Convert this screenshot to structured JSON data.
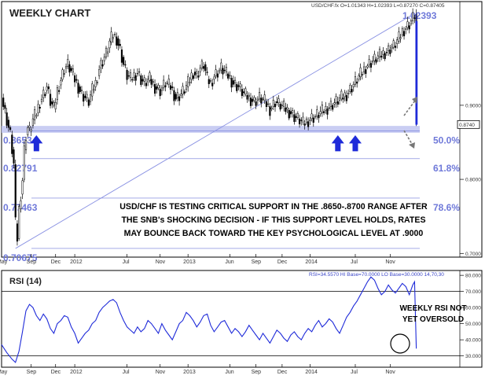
{
  "chart_data": [
    {
      "type": "candlestick",
      "title": "WEEKLY CHART",
      "header": "USD/CHF.fx O=1.01343 H=1.02393 L=0.87270 C=0.87405",
      "price_label": "0.8740",
      "y_tick_labels": [
        "0.9000",
        "0.8000",
        "0.7000"
      ],
      "ylim": [
        0.695,
        1.04
      ],
      "x_tick_labels": [
        "May",
        "Sep",
        "Dec",
        "2012",
        "Jul",
        "Nov",
        "2013",
        "Jun",
        "Sep",
        "Dec",
        "2014",
        "Jul",
        "Nov"
      ],
      "x_tick_weeks": [
        0,
        17,
        31,
        42,
        72,
        91,
        107,
        131,
        146,
        161,
        177,
        203,
        223
      ],
      "fib_levels": [
        {
          "value": 0.70675,
          "left": "0.70675"
        },
        {
          "value": 0.77463,
          "left": "0.77463",
          "right": "78.6%"
        },
        {
          "value": 0.82791,
          "left": "0.82791",
          "right": "61.8%"
        },
        {
          "value": 0.86534,
          "left": "0.86534",
          "right": "50.0%"
        },
        {
          "value": 1.02393,
          "right": "1.02393"
        }
      ],
      "support_band": [
        0.865,
        0.87
      ],
      "trendline": {
        "from_week": 8,
        "from_value": 0.70675,
        "to_week": 237,
        "to_value": 1.02393
      },
      "arrows_up_at_weeks": [
        20,
        193,
        203
      ],
      "annotation": [
        "USD/CHF IS TESTING CRITICAL SUPPORT IN THE .8650-.8700 RANGE AFTER",
        "THE SNB's SHOCKING DECISION - IF THIS SUPPORT LEVEL HOLDS, RATES",
        "MAY BOUNCE BACK TOWARD THE KEY PSYCHOLOGICAL LEVEL AT .9000"
      ],
      "weekly_closes": [
        {
          "week": 0,
          "value": 0.91
        },
        {
          "week": 2,
          "value": 0.89
        },
        {
          "week": 4,
          "value": 0.87
        },
        {
          "week": 5,
          "value": 0.86
        },
        {
          "week": 7,
          "value": 0.82
        },
        {
          "week": 8,
          "value": 0.74
        },
        {
          "week": 9,
          "value": 0.72
        },
        {
          "week": 10,
          "value": 0.76
        },
        {
          "week": 11,
          "value": 0.78
        },
        {
          "week": 12,
          "value": 0.8
        },
        {
          "week": 13,
          "value": 0.84
        },
        {
          "week": 14,
          "value": 0.86
        },
        {
          "week": 15,
          "value": 0.87
        },
        {
          "week": 16,
          "value": 0.865
        },
        {
          "week": 18,
          "value": 0.88
        },
        {
          "week": 20,
          "value": 0.89
        },
        {
          "week": 22,
          "value": 0.905
        },
        {
          "week": 24,
          "value": 0.915
        },
        {
          "week": 26,
          "value": 0.925
        },
        {
          "week": 28,
          "value": 0.905
        },
        {
          "week": 30,
          "value": 0.895
        },
        {
          "week": 32,
          "value": 0.92
        },
        {
          "week": 34,
          "value": 0.935
        },
        {
          "week": 36,
          "value": 0.95
        },
        {
          "week": 38,
          "value": 0.955
        },
        {
          "week": 40,
          "value": 0.945
        },
        {
          "week": 43,
          "value": 0.93
        },
        {
          "week": 46,
          "value": 0.915
        },
        {
          "week": 48,
          "value": 0.91
        },
        {
          "week": 50,
          "value": 0.905
        },
        {
          "week": 52,
          "value": 0.92
        },
        {
          "week": 54,
          "value": 0.93
        },
        {
          "week": 56,
          "value": 0.95
        },
        {
          "week": 58,
          "value": 0.96
        },
        {
          "week": 60,
          "value": 0.97
        },
        {
          "week": 62,
          "value": 0.985
        },
        {
          "week": 64,
          "value": 0.995
        },
        {
          "week": 66,
          "value": 0.99
        },
        {
          "week": 68,
          "value": 0.975
        },
        {
          "week": 70,
          "value": 0.955
        },
        {
          "week": 72,
          "value": 0.94
        },
        {
          "week": 74,
          "value": 0.935
        },
        {
          "week": 76,
          "value": 0.94
        },
        {
          "week": 78,
          "value": 0.945
        },
        {
          "week": 80,
          "value": 0.935
        },
        {
          "week": 82,
          "value": 0.93
        },
        {
          "week": 85,
          "value": 0.935
        },
        {
          "week": 88,
          "value": 0.925
        },
        {
          "week": 91,
          "value": 0.92
        },
        {
          "week": 94,
          "value": 0.93
        },
        {
          "week": 97,
          "value": 0.925
        },
        {
          "week": 100,
          "value": 0.91
        },
        {
          "week": 103,
          "value": 0.915
        },
        {
          "week": 106,
          "value": 0.925
        },
        {
          "week": 108,
          "value": 0.935
        },
        {
          "week": 110,
          "value": 0.945
        },
        {
          "week": 112,
          "value": 0.94
        },
        {
          "week": 114,
          "value": 0.95
        },
        {
          "week": 116,
          "value": 0.955
        },
        {
          "week": 118,
          "value": 0.935
        },
        {
          "week": 120,
          "value": 0.93
        },
        {
          "week": 122,
          "value": 0.94
        },
        {
          "week": 124,
          "value": 0.945
        },
        {
          "week": 126,
          "value": 0.95
        },
        {
          "week": 128,
          "value": 0.945
        },
        {
          "week": 130,
          "value": 0.94
        },
        {
          "week": 133,
          "value": 0.93
        },
        {
          "week": 136,
          "value": 0.925
        },
        {
          "week": 139,
          "value": 0.915
        },
        {
          "week": 142,
          "value": 0.91
        },
        {
          "week": 145,
          "value": 0.905
        },
        {
          "week": 148,
          "value": 0.91
        },
        {
          "week": 151,
          "value": 0.905
        },
        {
          "week": 154,
          "value": 0.895
        },
        {
          "week": 157,
          "value": 0.905
        },
        {
          "week": 160,
          "value": 0.9
        },
        {
          "week": 163,
          "value": 0.895
        },
        {
          "week": 166,
          "value": 0.89
        },
        {
          "week": 168,
          "value": 0.885
        },
        {
          "week": 171,
          "value": 0.88
        },
        {
          "week": 173,
          "value": 0.875
        },
        {
          "week": 175,
          "value": 0.878
        },
        {
          "week": 177,
          "value": 0.882
        },
        {
          "week": 180,
          "value": 0.885
        },
        {
          "week": 183,
          "value": 0.89
        },
        {
          "week": 186,
          "value": 0.895
        },
        {
          "week": 189,
          "value": 0.9
        },
        {
          "week": 192,
          "value": 0.905
        },
        {
          "week": 195,
          "value": 0.91
        },
        {
          "week": 198,
          "value": 0.915
        },
        {
          "week": 201,
          "value": 0.925
        },
        {
          "week": 204,
          "value": 0.935
        },
        {
          "week": 207,
          "value": 0.945
        },
        {
          "week": 210,
          "value": 0.955
        },
        {
          "week": 213,
          "value": 0.96
        },
        {
          "week": 216,
          "value": 0.965
        },
        {
          "week": 219,
          "value": 0.97
        },
        {
          "week": 222,
          "value": 0.975
        },
        {
          "week": 225,
          "value": 0.98
        },
        {
          "week": 228,
          "value": 0.99
        },
        {
          "week": 230,
          "value": 1.0
        },
        {
          "week": 232,
          "value": 1.005
        },
        {
          "week": 234,
          "value": 1.01
        },
        {
          "week": 236,
          "value": 1.018
        },
        {
          "week": 237,
          "value": 1.023
        },
        {
          "week": 238,
          "value": 0.87405
        }
      ]
    },
    {
      "type": "line",
      "title": "RSI (14)",
      "header": "RSI=34.5570 HI Base=70.0000 LO Base=30.0000  14,70,30",
      "y_tick_labels": [
        "80.000",
        "70.000",
        "60.000",
        "50.000",
        "40.000",
        "30.000"
      ],
      "ylim": [
        23,
        83
      ],
      "reference_lines": [
        70,
        30
      ],
      "annotation": [
        "WEEKLY RSI NOT",
        "YET OVERSOLD"
      ],
      "x_tick_labels": [
        "May",
        "Sep",
        "Dec",
        "2012",
        "Jul",
        "Nov",
        "2013",
        "Jun",
        "Sep",
        "Dec",
        "2014",
        "Jul",
        "Nov"
      ],
      "values": [
        {
          "week": 0,
          "value": 37
        },
        {
          "week": 3,
          "value": 32
        },
        {
          "week": 6,
          "value": 28
        },
        {
          "week": 8,
          "value": 26
        },
        {
          "week": 10,
          "value": 33
        },
        {
          "week": 12,
          "value": 45
        },
        {
          "week": 14,
          "value": 58
        },
        {
          "week": 16,
          "value": 62
        },
        {
          "week": 18,
          "value": 60
        },
        {
          "week": 20,
          "value": 55
        },
        {
          "week": 22,
          "value": 52
        },
        {
          "week": 24,
          "value": 56
        },
        {
          "week": 26,
          "value": 53
        },
        {
          "week": 28,
          "value": 47
        },
        {
          "week": 30,
          "value": 44
        },
        {
          "week": 32,
          "value": 50
        },
        {
          "week": 34,
          "value": 52
        },
        {
          "week": 36,
          "value": 55
        },
        {
          "week": 38,
          "value": 54
        },
        {
          "week": 40,
          "value": 48
        },
        {
          "week": 42,
          "value": 44
        },
        {
          "week": 44,
          "value": 38
        },
        {
          "week": 46,
          "value": 41
        },
        {
          "week": 48,
          "value": 44
        },
        {
          "week": 50,
          "value": 46
        },
        {
          "week": 52,
          "value": 50
        },
        {
          "week": 54,
          "value": 52
        },
        {
          "week": 56,
          "value": 57
        },
        {
          "week": 58,
          "value": 60
        },
        {
          "week": 60,
          "value": 62
        },
        {
          "week": 62,
          "value": 64
        },
        {
          "week": 64,
          "value": 65
        },
        {
          "week": 66,
          "value": 63
        },
        {
          "week": 68,
          "value": 57
        },
        {
          "week": 70,
          "value": 52
        },
        {
          "week": 72,
          "value": 48
        },
        {
          "week": 74,
          "value": 46
        },
        {
          "week": 76,
          "value": 44
        },
        {
          "week": 78,
          "value": 48
        },
        {
          "week": 80,
          "value": 45
        },
        {
          "week": 82,
          "value": 47
        },
        {
          "week": 84,
          "value": 52
        },
        {
          "week": 86,
          "value": 50
        },
        {
          "week": 88,
          "value": 47
        },
        {
          "week": 90,
          "value": 44
        },
        {
          "week": 92,
          "value": 50
        },
        {
          "week": 94,
          "value": 46
        },
        {
          "week": 96,
          "value": 43
        },
        {
          "week": 98,
          "value": 40
        },
        {
          "week": 100,
          "value": 45
        },
        {
          "week": 102,
          "value": 50
        },
        {
          "week": 104,
          "value": 52
        },
        {
          "week": 106,
          "value": 57
        },
        {
          "week": 108,
          "value": 55
        },
        {
          "week": 110,
          "value": 52
        },
        {
          "week": 112,
          "value": 48
        },
        {
          "week": 114,
          "value": 51
        },
        {
          "week": 116,
          "value": 55
        },
        {
          "week": 118,
          "value": 56
        },
        {
          "week": 120,
          "value": 49
        },
        {
          "week": 122,
          "value": 45
        },
        {
          "week": 124,
          "value": 48
        },
        {
          "week": 126,
          "value": 51
        },
        {
          "week": 128,
          "value": 52
        },
        {
          "week": 130,
          "value": 48
        },
        {
          "week": 132,
          "value": 44
        },
        {
          "week": 134,
          "value": 47
        },
        {
          "week": 136,
          "value": 45
        },
        {
          "week": 138,
          "value": 42
        },
        {
          "week": 140,
          "value": 45
        },
        {
          "week": 142,
          "value": 49
        },
        {
          "week": 144,
          "value": 46
        },
        {
          "week": 146,
          "value": 43
        },
        {
          "week": 148,
          "value": 40
        },
        {
          "week": 150,
          "value": 44
        },
        {
          "week": 152,
          "value": 41
        },
        {
          "week": 154,
          "value": 38
        },
        {
          "week": 156,
          "value": 42
        },
        {
          "week": 158,
          "value": 46
        },
        {
          "week": 160,
          "value": 44
        },
        {
          "week": 162,
          "value": 41
        },
        {
          "week": 164,
          "value": 39
        },
        {
          "week": 166,
          "value": 43
        },
        {
          "week": 168,
          "value": 45
        },
        {
          "week": 170,
          "value": 42
        },
        {
          "week": 172,
          "value": 40
        },
        {
          "week": 174,
          "value": 44
        },
        {
          "week": 176,
          "value": 47
        },
        {
          "week": 178,
          "value": 45
        },
        {
          "week": 180,
          "value": 49
        },
        {
          "week": 182,
          "value": 52
        },
        {
          "week": 184,
          "value": 48
        },
        {
          "week": 186,
          "value": 50
        },
        {
          "week": 188,
          "value": 53
        },
        {
          "week": 190,
          "value": 51
        },
        {
          "week": 192,
          "value": 47
        },
        {
          "week": 194,
          "value": 44
        },
        {
          "week": 196,
          "value": 49
        },
        {
          "week": 198,
          "value": 54
        },
        {
          "week": 200,
          "value": 57
        },
        {
          "week": 202,
          "value": 61
        },
        {
          "week": 204,
          "value": 64
        },
        {
          "week": 206,
          "value": 68
        },
        {
          "week": 208,
          "value": 72
        },
        {
          "week": 210,
          "value": 76
        },
        {
          "week": 212,
          "value": 79
        },
        {
          "week": 214,
          "value": 77
        },
        {
          "week": 216,
          "value": 72
        },
        {
          "week": 218,
          "value": 68
        },
        {
          "week": 220,
          "value": 70
        },
        {
          "week": 222,
          "value": 74
        },
        {
          "week": 224,
          "value": 71
        },
        {
          "week": 226,
          "value": 69
        },
        {
          "week": 228,
          "value": 72
        },
        {
          "week": 230,
          "value": 75
        },
        {
          "week": 232,
          "value": 73
        },
        {
          "week": 234,
          "value": 68
        },
        {
          "week": 236,
          "value": 74
        },
        {
          "week": 237,
          "value": 76
        },
        {
          "week": 238,
          "value": 34.557
        }
      ]
    }
  ],
  "colors": {
    "support_band": "#c3c8f2",
    "fib_text": "#6f79d9",
    "trendline": "#6f79d9",
    "candle_up": "#ffffff",
    "candle_down": "#000000",
    "rsi_line": "#1f2bd9",
    "arrow": "#1f2bd9",
    "grid": "#000000"
  }
}
